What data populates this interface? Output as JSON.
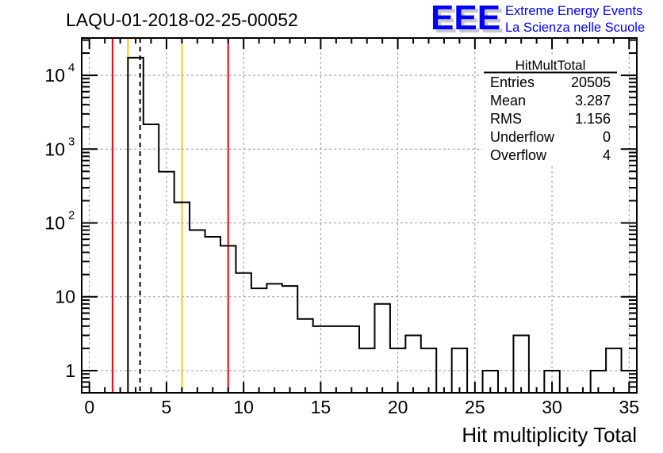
{
  "title": "LAQU-01-2018-02-25-00052",
  "logo": {
    "letters": "EEE",
    "line1": "Extreme Energy Events",
    "line2": "La Scienza nelle Scuole",
    "color": "#0000ff",
    "shadow": "#c8c8c8"
  },
  "stats": {
    "name": "HitMultTotal",
    "rows": [
      {
        "label": "Entries",
        "value": "20505"
      },
      {
        "label": "Mean",
        "value": "3.287"
      },
      {
        "label": "RMS",
        "value": "1.156"
      },
      {
        "label": "Underflow",
        "value": "0"
      },
      {
        "label": "Overflow",
        "value": "4"
      }
    ]
  },
  "chart_data": {
    "type": "histogram",
    "title": "LAQU-01-2018-02-25-00052",
    "xlabel": "Hit multiplicity Total",
    "ylabel": "",
    "yscale": "log",
    "xlim": [
      -0.5,
      35.5
    ],
    "ylim": [
      0.5,
      32000
    ],
    "grid": true,
    "bin_width": 1,
    "bin_centers": [
      0,
      1,
      2,
      3,
      4,
      5,
      6,
      7,
      8,
      9,
      10,
      11,
      12,
      13,
      14,
      15,
      16,
      17,
      18,
      19,
      20,
      21,
      22,
      23,
      24,
      25,
      26,
      27,
      28,
      29,
      30,
      31,
      32,
      33,
      34,
      35
    ],
    "counts": [
      0,
      0,
      0,
      17300,
      2170,
      495,
      190,
      80,
      65,
      49,
      21,
      13,
      15,
      14,
      5,
      4,
      4,
      4,
      2,
      8,
      2,
      3,
      2,
      0,
      2,
      0,
      1,
      0,
      3,
      0,
      1,
      0,
      0,
      1,
      2,
      1
    ],
    "x_ticks": [
      "0",
      "5",
      "10",
      "15",
      "20",
      "25",
      "30",
      "35"
    ],
    "y_ticks": [
      {
        "value": 1,
        "base": "1",
        "exp": ""
      },
      {
        "value": 10,
        "base": "10",
        "exp": ""
      },
      {
        "value": 100,
        "base": "10",
        "exp": "2"
      },
      {
        "value": 1000,
        "base": "10",
        "exp": "3"
      },
      {
        "value": 10000,
        "base": "10",
        "exp": "4"
      }
    ],
    "vertical_lines": [
      {
        "x": 1.5,
        "color": "#ff0000",
        "style": "solid"
      },
      {
        "x": 2.5,
        "color": "#ffcc00",
        "style": "solid"
      },
      {
        "x": 3.287,
        "color": "#000000",
        "style": "dashed"
      },
      {
        "x": 6.0,
        "color": "#ffcc00",
        "style": "solid"
      },
      {
        "x": 9.0,
        "color": "#ff0000",
        "style": "solid"
      }
    ]
  }
}
